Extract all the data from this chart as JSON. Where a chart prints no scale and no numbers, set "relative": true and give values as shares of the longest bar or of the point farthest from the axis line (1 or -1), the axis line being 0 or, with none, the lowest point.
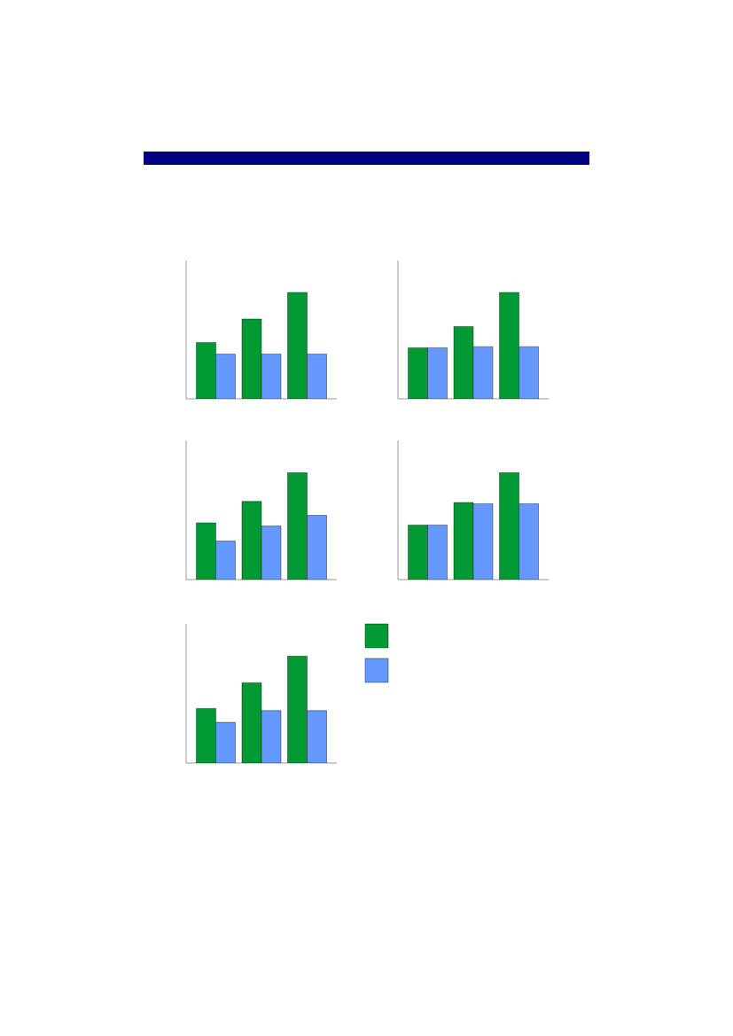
{
  "chart_data": [
    {
      "type": "bar",
      "relative": true,
      "categories": [
        null,
        null,
        null
      ],
      "series": [
        {
          "color": "#009933",
          "values": [
            0.53,
            0.75,
            1
          ]
        },
        {
          "color": "#6699ff",
          "values": [
            0.42,
            0.42,
            0.42
          ]
        }
      ]
    },
    {
      "type": "bar",
      "relative": true,
      "categories": [
        null,
        null,
        null
      ],
      "series": [
        {
          "color": "#009933",
          "values": [
            0.48,
            0.68,
            1
          ]
        },
        {
          "color": "#6699ff",
          "values": [
            0.48,
            0.49,
            0.49
          ]
        }
      ]
    },
    {
      "type": "bar",
      "relative": true,
      "categories": [
        null,
        null,
        null
      ],
      "series": [
        {
          "color": "#009933",
          "values": [
            0.53,
            0.73,
            1
          ]
        },
        {
          "color": "#6699ff",
          "values": [
            0.36,
            0.5,
            0.6
          ]
        }
      ]
    },
    {
      "type": "bar",
      "relative": true,
      "categories": [
        null,
        null,
        null
      ],
      "series": [
        {
          "color": "#009933",
          "values": [
            0.51,
            0.72,
            1
          ]
        },
        {
          "color": "#6699ff",
          "values": [
            0.51,
            0.71,
            0.71
          ]
        }
      ]
    },
    {
      "type": "bar",
      "relative": true,
      "categories": [
        null,
        null,
        null
      ],
      "series": [
        {
          "color": "#009933",
          "values": [
            0.51,
            0.75,
            1
          ]
        },
        {
          "color": "#6699ff",
          "values": [
            0.38,
            0.49,
            0.49
          ]
        }
      ]
    }
  ]
}
